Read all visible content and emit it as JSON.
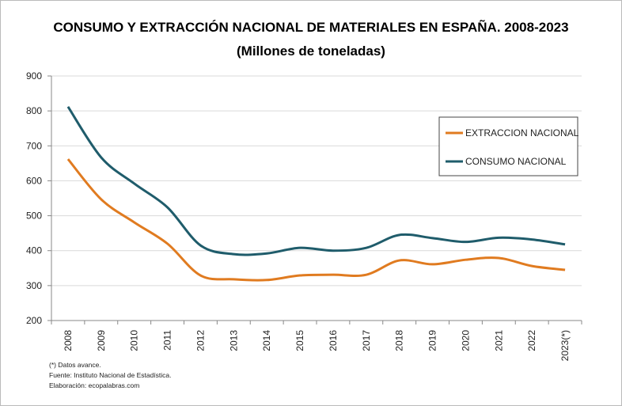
{
  "chart_data": {
    "type": "line",
    "title": "CONSUMO Y EXTRACCIÓN NACIONAL DE MATERIALES EN ESPAÑA. 2008-2023",
    "subtitle": "(Millones de toneladas)",
    "categories": [
      "2008",
      "2009",
      "2010",
      "2011",
      "2012",
      "2013",
      "2014",
      "2015",
      "2016",
      "2017",
      "2018",
      "2019",
      "2020",
      "2021",
      "2022",
      "2023(*)"
    ],
    "series": [
      {
        "name": "EXTRACCION NACIONAL",
        "color": "#e07b20",
        "values": [
          662,
          547,
          481,
          420,
          329,
          318,
          316,
          329,
          331,
          331,
          372,
          361,
          374,
          379,
          356,
          345
        ]
      },
      {
        "name": "CONSUMO NACIONAL",
        "color": "#1f5c6b",
        "values": [
          812,
          667,
          592,
          524,
          415,
          390,
          392,
          408,
          400,
          408,
          445,
          436,
          425,
          437,
          432,
          418
        ]
      }
    ],
    "ylim": [
      200,
      900
    ],
    "yticks": [
      200,
      300,
      400,
      500,
      600,
      700,
      800,
      900
    ],
    "grid": true,
    "legend": "upper right",
    "notes": [
      "(*) Datos avance.",
      "Fuente: Instituto Nacional de Estadística.",
      "Elaboración: ecopalabras.com"
    ]
  }
}
